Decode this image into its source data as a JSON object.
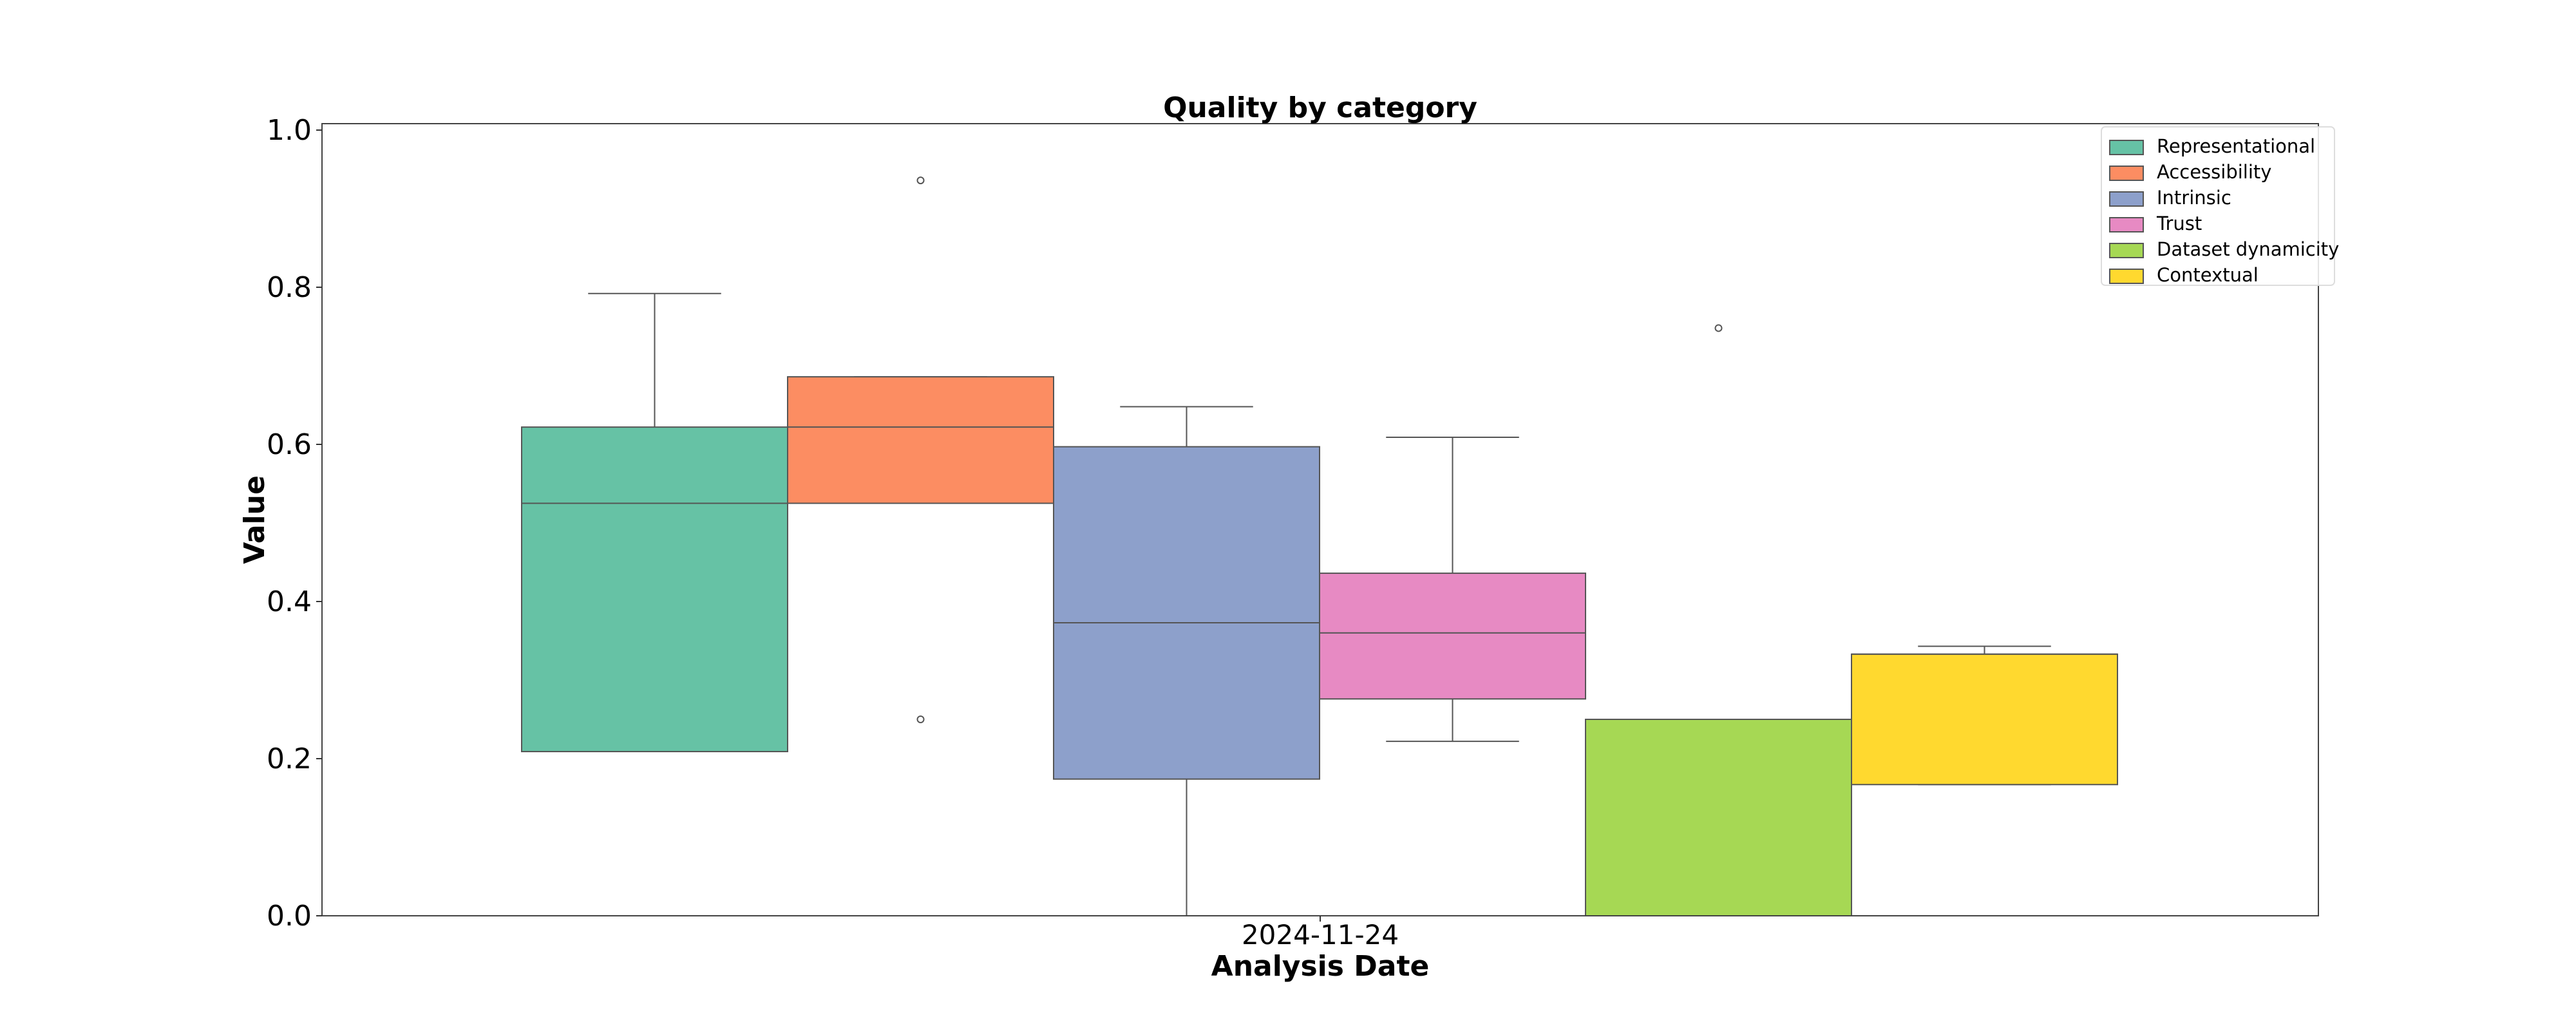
{
  "chart_data": {
    "type": "box",
    "title": "Quality by category",
    "xlabel": "Analysis Date",
    "ylabel": "Value",
    "categories": [
      "2024-11-24"
    ],
    "ylim": [
      0,
      1.0
    ],
    "y_ticks": [
      "0.0",
      "0.2",
      "0.4",
      "0.6",
      "0.8",
      "1.0"
    ],
    "grid": false,
    "legend": {
      "position": "top-right"
    },
    "series": [
      {
        "name": "Representational",
        "color": "#66c2a5",
        "whisker_low": 0.209,
        "q1": 0.209,
        "median": 0.525,
        "q3": 0.622,
        "whisker_high": 0.792,
        "outliers": []
      },
      {
        "name": "Accessibility",
        "color": "#fc8d62",
        "whisker_low": 0.525,
        "q1": 0.525,
        "median": 0.622,
        "q3": 0.686,
        "whisker_high": 0.686,
        "outliers": [
          0.936,
          0.25
        ]
      },
      {
        "name": "Intrinsic",
        "color": "#8da0cb",
        "whisker_low": 0.0,
        "q1": 0.174,
        "median": 0.373,
        "q3": 0.597,
        "whisker_high": 0.648,
        "outliers": []
      },
      {
        "name": "Trust",
        "color": "#e78ac3",
        "whisker_low": 0.222,
        "q1": 0.276,
        "median": 0.36,
        "q3": 0.436,
        "whisker_high": 0.609,
        "outliers": []
      },
      {
        "name": "Dataset dynamicity",
        "color": "#a6d854",
        "whisker_low": 0.0,
        "q1": 0.0,
        "median": 0.0,
        "q3": 0.25,
        "whisker_high": 0.25,
        "outliers": [
          0.748
        ]
      },
      {
        "name": "Contextual",
        "color": "#ffd92f",
        "whisker_low": 0.167,
        "q1": 0.167,
        "median": 0.333,
        "q3": 0.333,
        "whisker_high": 0.343,
        "outliers": []
      }
    ]
  }
}
